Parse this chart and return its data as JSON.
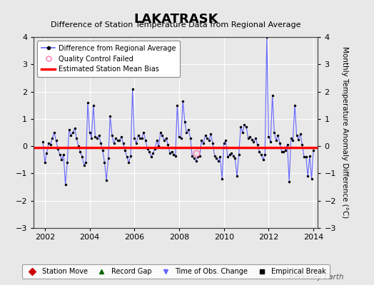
{
  "title": "LAKATRASK",
  "subtitle": "Difference of Station Temperature Data from Regional Average",
  "ylabel_right": "Monthly Temperature Anomaly Difference (°C)",
  "bias": -0.05,
  "xlim": [
    2001.5,
    2014.2
  ],
  "ylim": [
    -3,
    4
  ],
  "yticks": [
    -3,
    -2,
    -1,
    0,
    1,
    2,
    3,
    4
  ],
  "xticks": [
    2002,
    2004,
    2006,
    2008,
    2010,
    2012,
    2014
  ],
  "background_color": "#e8e8e8",
  "plot_bg_color": "#e8e8e8",
  "line_color": "#6666ff",
  "bias_color": "#ff0000",
  "marker_color": "#000000",
  "watermark": "Berkeley Earth",
  "time_values": [
    2001.917,
    2002.0,
    2002.083,
    2002.167,
    2002.25,
    2002.333,
    2002.417,
    2002.5,
    2002.583,
    2002.667,
    2002.75,
    2002.833,
    2002.917,
    2003.0,
    2003.083,
    2003.167,
    2003.25,
    2003.333,
    2003.417,
    2003.5,
    2003.583,
    2003.667,
    2003.75,
    2003.833,
    2003.917,
    2004.0,
    2004.083,
    2004.167,
    2004.25,
    2004.333,
    2004.417,
    2004.5,
    2004.583,
    2004.667,
    2004.75,
    2004.833,
    2004.917,
    2005.0,
    2005.083,
    2005.167,
    2005.25,
    2005.333,
    2005.417,
    2005.5,
    2005.583,
    2005.667,
    2005.75,
    2005.833,
    2005.917,
    2006.0,
    2006.083,
    2006.167,
    2006.25,
    2006.333,
    2006.417,
    2006.5,
    2006.583,
    2006.667,
    2006.75,
    2006.833,
    2006.917,
    2007.0,
    2007.083,
    2007.167,
    2007.25,
    2007.333,
    2007.417,
    2007.5,
    2007.583,
    2007.667,
    2007.75,
    2007.833,
    2007.917,
    2008.0,
    2008.083,
    2008.167,
    2008.25,
    2008.333,
    2008.417,
    2008.5,
    2008.583,
    2008.667,
    2008.75,
    2008.833,
    2008.917,
    2009.0,
    2009.083,
    2009.167,
    2009.25,
    2009.333,
    2009.417,
    2009.5,
    2009.583,
    2009.667,
    2009.75,
    2009.833,
    2009.917,
    2010.0,
    2010.083,
    2010.167,
    2010.25,
    2010.333,
    2010.417,
    2010.5,
    2010.583,
    2010.667,
    2010.75,
    2010.833,
    2010.917,
    2011.0,
    2011.083,
    2011.167,
    2011.25,
    2011.333,
    2011.417,
    2011.5,
    2011.583,
    2011.667,
    2011.75,
    2011.833,
    2011.917,
    2012.0,
    2012.083,
    2012.167,
    2012.25,
    2012.333,
    2012.417,
    2012.5,
    2012.583,
    2012.667,
    2012.75,
    2012.833,
    2012.917,
    2013.0,
    2013.083,
    2013.167,
    2013.25,
    2013.333,
    2013.417,
    2013.5,
    2013.583,
    2013.667,
    2013.75,
    2013.833,
    2013.917,
    2014.0
  ],
  "data_values": [
    0.15,
    -0.6,
    -0.25,
    0.1,
    0.05,
    0.3,
    0.5,
    0.2,
    -0.1,
    -0.3,
    -0.5,
    -0.3,
    -1.4,
    -0.6,
    0.6,
    0.4,
    0.5,
    0.65,
    0.3,
    0.0,
    -0.2,
    -0.4,
    -0.7,
    -0.6,
    1.6,
    0.5,
    0.3,
    1.5,
    0.35,
    0.3,
    0.4,
    0.1,
    -0.15,
    -0.6,
    -1.25,
    -0.45,
    1.1,
    0.4,
    0.1,
    0.3,
    0.2,
    0.2,
    0.35,
    0.1,
    -0.15,
    -0.4,
    -0.6,
    -0.35,
    2.1,
    0.3,
    0.1,
    0.4,
    0.3,
    0.3,
    0.5,
    0.2,
    -0.1,
    -0.2,
    -0.4,
    -0.25,
    -0.1,
    0.2,
    0.0,
    0.5,
    0.4,
    0.2,
    0.3,
    0.05,
    -0.25,
    -0.2,
    -0.3,
    -0.35,
    1.5,
    0.35,
    0.3,
    1.65,
    0.9,
    0.5,
    0.6,
    0.3,
    -0.35,
    -0.45,
    -0.55,
    -0.4,
    -0.35,
    0.2,
    0.1,
    0.4,
    0.3,
    0.2,
    0.45,
    0.1,
    -0.35,
    -0.45,
    -0.55,
    -0.4,
    -1.2,
    0.1,
    0.2,
    -0.4,
    -0.3,
    -0.25,
    -0.35,
    -0.45,
    -1.1,
    -0.3,
    0.7,
    0.5,
    0.8,
    0.7,
    0.3,
    0.35,
    0.25,
    0.15,
    0.3,
    0.05,
    -0.2,
    -0.3,
    -0.5,
    -0.3,
    4.0,
    0.35,
    0.15,
    1.85,
    0.5,
    0.2,
    0.4,
    0.1,
    -0.2,
    -0.2,
    -0.15,
    0.05,
    -1.3,
    0.3,
    0.2,
    1.5,
    0.4,
    0.25,
    0.45,
    0.05,
    -0.4,
    -0.4,
    -1.1,
    -0.35,
    -1.2,
    -0.15
  ],
  "qc_failed_x": [
    2008.75
  ],
  "qc_failed_y": [
    -0.25
  ]
}
